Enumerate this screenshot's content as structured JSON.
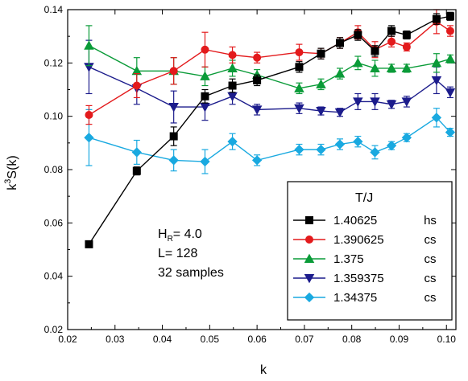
{
  "chart_data": {
    "type": "line",
    "xlabel": "k",
    "ylabel_main": "k",
    "ylabel_sup": "3",
    "ylabel_tail": "S(k)",
    "xlim": [
      0.02,
      0.102
    ],
    "ylim": [
      0.02,
      0.14
    ],
    "xticks": [
      0.02,
      0.03,
      0.04,
      0.05,
      0.06,
      0.07,
      0.08,
      0.09,
      0.1
    ],
    "xtick_labels": [
      "0.02",
      "0.03",
      "0.04",
      "0.05",
      "0.06",
      "0.07",
      "0.08",
      "0.09",
      "0.10"
    ],
    "yticks": [
      0.02,
      0.04,
      0.06,
      0.08,
      0.1,
      0.12,
      0.14
    ],
    "ytick_labels": [
      "0.02",
      "0.04",
      "0.06",
      "0.08",
      "0.10",
      "0.12",
      "0.14"
    ],
    "annotation": {
      "hr_main": "H",
      "hr_sub": "R",
      "hr_value": "= 4.0",
      "size": "L= 128",
      "samples": "32 samples"
    },
    "legend": {
      "title": "T/J",
      "position": "bottom-right"
    },
    "x": [
      0.0245,
      0.0346,
      0.0424,
      0.049,
      0.0548,
      0.06,
      0.0689,
      0.0735,
      0.0775,
      0.0813,
      0.0849,
      0.0884,
      0.0916,
      0.0979,
      0.1008
    ],
    "series": [
      {
        "name": "1.40625",
        "tag": "hs",
        "color": "#000000",
        "marker": "square",
        "values": [
          0.052,
          0.0795,
          0.0925,
          0.1075,
          0.1115,
          0.1135,
          0.1185,
          0.1235,
          0.1275,
          0.1305,
          0.1245,
          0.132,
          0.1305,
          0.1365,
          0.1375
        ],
        "errors": [
          0.0012,
          0.0015,
          0.0035,
          0.0025,
          0.0025,
          0.002,
          0.002,
          0.002,
          0.002,
          0.002,
          0.002,
          0.002,
          0.0015,
          0.002,
          0.0015
        ]
      },
      {
        "name": "1.390625",
        "tag": "cs",
        "color": "#e31a1c",
        "marker": "circle",
        "values": [
          0.1005,
          0.1115,
          0.117,
          0.125,
          0.123,
          0.122,
          0.124,
          0.1235,
          0.1275,
          0.1315,
          0.125,
          0.128,
          0.126,
          0.1355,
          0.132
        ],
        "errors": [
          0.0035,
          0.0045,
          0.005,
          0.0065,
          0.003,
          0.002,
          0.003,
          0.002,
          0.002,
          0.0025,
          0.003,
          0.002,
          0.0015,
          0.0045,
          0.002
        ]
      },
      {
        "name": "1.375",
        "tag": "cs",
        "color": "#0a9b38",
        "marker": "triangle-up",
        "values": [
          0.1265,
          0.117,
          0.117,
          0.115,
          0.118,
          0.1155,
          0.1105,
          0.112,
          0.116,
          0.12,
          0.118,
          0.118,
          0.118,
          0.12,
          0.1215
        ],
        "errors": [
          0.0075,
          0.005,
          0.005,
          0.0035,
          0.003,
          0.002,
          0.002,
          0.002,
          0.002,
          0.0025,
          0.003,
          0.0015,
          0.0015,
          0.0035,
          0.0015
        ]
      },
      {
        "name": "1.359375",
        "tag": "cs",
        "color": "#1c1c8c",
        "marker": "triangle-down",
        "values": [
          0.1185,
          0.1105,
          0.1035,
          0.1035,
          0.1075,
          0.1025,
          0.103,
          0.102,
          0.1015,
          0.1055,
          0.1055,
          0.1045,
          0.1055,
          0.1135,
          0.109
        ],
        "errors": [
          0.01,
          0.006,
          0.006,
          0.005,
          0.003,
          0.002,
          0.002,
          0.0015,
          0.0015,
          0.003,
          0.003,
          0.0015,
          0.002,
          0.005,
          0.002
        ]
      },
      {
        "name": "1.34375",
        "tag": "cs",
        "color": "#19a9e0",
        "marker": "diamond",
        "values": [
          0.092,
          0.0865,
          0.0835,
          0.083,
          0.0905,
          0.0835,
          0.0875,
          0.0875,
          0.0895,
          0.0905,
          0.0865,
          0.089,
          0.092,
          0.0995,
          0.094
        ],
        "errors": [
          0.0105,
          0.0045,
          0.004,
          0.0045,
          0.003,
          0.002,
          0.002,
          0.002,
          0.002,
          0.002,
          0.0025,
          0.0015,
          0.0015,
          0.0035,
          0.0015
        ]
      }
    ]
  }
}
